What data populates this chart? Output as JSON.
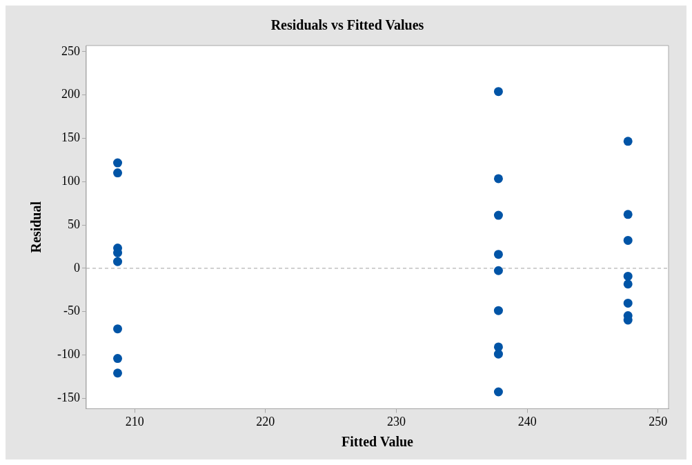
{
  "chart_data": {
    "type": "scatter",
    "title": "Residuals vs Fitted Values",
    "xlabel": "Fitted Value",
    "ylabel": "Residual",
    "x": [
      208.7,
      208.7,
      208.7,
      208.7,
      208.7,
      208.7,
      208.7,
      208.7,
      237.8,
      237.8,
      237.8,
      237.8,
      237.8,
      237.8,
      237.8,
      237.8,
      237.8,
      247.7,
      247.7,
      247.7,
      247.7,
      247.7,
      247.7,
      247.7,
      247.7
    ],
    "values": [
      121.6,
      110.1,
      23.3,
      17.9,
      7.7,
      -69.9,
      -104,
      -120.9,
      203.9,
      103.4,
      61.1,
      16.1,
      -2.7,
      -48.8,
      -90.8,
      -98.9,
      -142.6,
      146.5,
      62.1,
      32.2,
      -9.2,
      -18.2,
      -40.2,
      -54.7,
      -59.8
    ],
    "color": "#0054a6",
    "marker": "circle",
    "xlim": [
      206.3,
      250.8
    ],
    "xticks": [
      210,
      220,
      230,
      240,
      250
    ],
    "ylim": [
      -162,
      257
    ],
    "yticks": [
      -150,
      -100,
      -50,
      0,
      50,
      100,
      150,
      200,
      250
    ],
    "ref_lines": [
      {
        "axis": "y",
        "value": 0,
        "color": "#b4b4b4",
        "line_style": "dashed"
      }
    ],
    "grid": false,
    "legend": false
  }
}
